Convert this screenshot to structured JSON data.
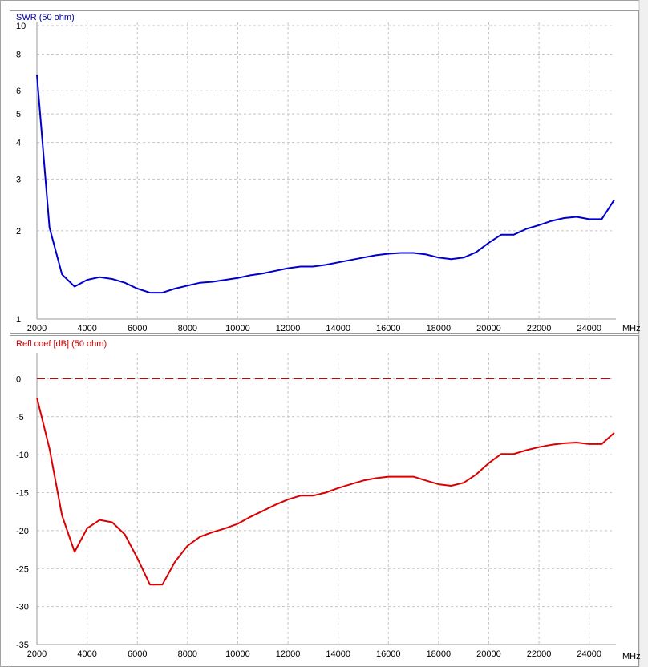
{
  "chart_data": [
    {
      "type": "line",
      "title": "SWR (50 ohm)",
      "xlabel": "MHz",
      "ylabel": "",
      "xlim": [
        2000,
        25000
      ],
      "ylim": [
        1,
        10
      ],
      "yscale": "log",
      "grid": true,
      "x_ticks": [
        2000,
        4000,
        6000,
        8000,
        10000,
        12000,
        14000,
        16000,
        18000,
        20000,
        22000,
        24000
      ],
      "x_tick_labels": [
        "2000",
        "4000",
        "6000",
        "8000",
        "10000",
        "12000",
        "14000",
        "16000",
        "18000",
        "20000",
        "22000",
        "24000"
      ],
      "y_ticks": [
        1,
        2,
        3,
        4,
        5,
        6,
        8,
        10
      ],
      "y_tick_labels": [
        "1",
        "2",
        "3",
        "4",
        "5",
        "6",
        "8",
        "10"
      ],
      "series": [
        {
          "color": "#0000cc",
          "x": [
            2000,
            2500,
            3000,
            3500,
            4000,
            4500,
            5000,
            5500,
            6000,
            6500,
            7000,
            7500,
            8000,
            8500,
            9000,
            9500,
            10000,
            10500,
            11000,
            11500,
            12000,
            12500,
            13000,
            13500,
            14000,
            14500,
            15000,
            15500,
            16000,
            16500,
            17000,
            17500,
            18000,
            18500,
            19000,
            19500,
            20000,
            20500,
            21000,
            21500,
            22000,
            22500,
            23000,
            23500,
            24000,
            24500,
            25000
          ],
          "values": [
            6.8,
            2.05,
            1.42,
            1.29,
            1.36,
            1.39,
            1.37,
            1.33,
            1.27,
            1.23,
            1.23,
            1.27,
            1.3,
            1.33,
            1.34,
            1.36,
            1.38,
            1.41,
            1.43,
            1.46,
            1.49,
            1.51,
            1.51,
            1.53,
            1.56,
            1.59,
            1.62,
            1.65,
            1.67,
            1.68,
            1.68,
            1.66,
            1.62,
            1.6,
            1.62,
            1.69,
            1.82,
            1.94,
            1.94,
            2.03,
            2.09,
            2.16,
            2.21,
            2.23,
            2.19,
            2.19,
            2.55
          ]
        }
      ]
    },
    {
      "type": "line",
      "title": "Refl coef [dB] (50 ohm)",
      "xlabel": "MHz",
      "ylabel": "",
      "xlim": [
        2000,
        25000
      ],
      "ylim": [
        -35,
        3
      ],
      "grid": true,
      "x_ticks": [
        2000,
        4000,
        6000,
        8000,
        10000,
        12000,
        14000,
        16000,
        18000,
        20000,
        22000,
        24000
      ],
      "x_tick_labels": [
        "2000",
        "4000",
        "6000",
        "8000",
        "10000",
        "12000",
        "14000",
        "16000",
        "18000",
        "20000",
        "22000",
        "24000"
      ],
      "y_ticks": [
        0,
        -5,
        -10,
        -15,
        -20,
        -25,
        -30,
        -35
      ],
      "y_tick_labels": [
        "0",
        "-5",
        "-10",
        "-15",
        "-20",
        "-25",
        "-30",
        "-35"
      ],
      "reference_line": {
        "y": 0,
        "color": "#cc0000",
        "style": "dashed"
      },
      "series": [
        {
          "color": "#dd0000",
          "x": [
            2000,
            2500,
            3000,
            3500,
            4000,
            4500,
            5000,
            5500,
            6000,
            6500,
            7000,
            7500,
            8000,
            8500,
            9000,
            9500,
            10000,
            10500,
            11000,
            11500,
            12000,
            12500,
            13000,
            13500,
            14000,
            14500,
            15000,
            15500,
            16000,
            16500,
            17000,
            17500,
            18000,
            18500,
            19000,
            19500,
            20000,
            20500,
            21000,
            21500,
            22000,
            22500,
            23000,
            23500,
            24000,
            24500,
            25000
          ],
          "values": [
            -2.5,
            -9.2,
            -18,
            -22.8,
            -19.7,
            -18.6,
            -18.9,
            -20.5,
            -23.6,
            -27.1,
            -27.1,
            -24.1,
            -22,
            -20.8,
            -20.2,
            -19.7,
            -19.1,
            -18.2,
            -17.4,
            -16.6,
            -15.9,
            -15.4,
            -15.4,
            -15,
            -14.4,
            -13.9,
            -13.4,
            -13.1,
            -12.9,
            -12.9,
            -12.9,
            -13.4,
            -13.9,
            -14.1,
            -13.7,
            -12.6,
            -11.1,
            -9.9,
            -9.9,
            -9.4,
            -9,
            -8.7,
            -8.5,
            -8.4,
            -8.6,
            -8.6,
            -7.1
          ]
        }
      ]
    }
  ]
}
